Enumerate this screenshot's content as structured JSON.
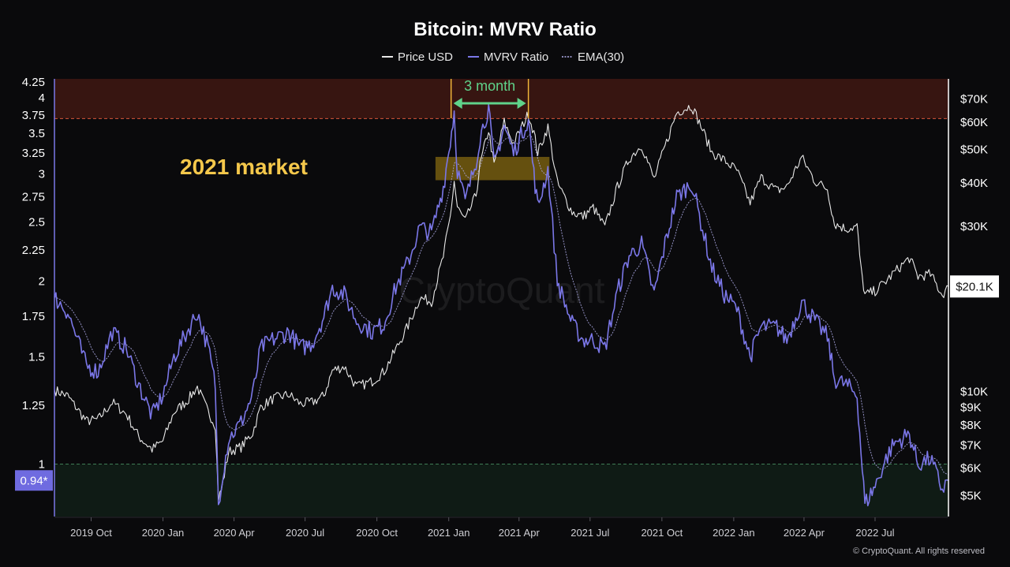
{
  "chart_data": {
    "type": "line",
    "title": "Bitcoin: MVRV Ratio",
    "legend": [
      {
        "name": "Price USD",
        "color": "#e8e8e8",
        "style": "solid"
      },
      {
        "name": "MVRV Ratio",
        "color": "#7b77e8",
        "style": "solid"
      },
      {
        "name": "EMA(30)",
        "color": "#b4b2f0",
        "style": "dotted"
      }
    ],
    "legend_placement": "top-center",
    "x_axis": {
      "type": "date",
      "range": [
        "2019-08-15",
        "2022-10-03"
      ],
      "ticks": [
        {
          "date": "2019-10-01",
          "label": "2019 Oct"
        },
        {
          "date": "2020-01-01",
          "label": "2020 Jan"
        },
        {
          "date": "2020-04-01",
          "label": "2020 Apr"
        },
        {
          "date": "2020-07-01",
          "label": "2020 Jul"
        },
        {
          "date": "2020-10-01",
          "label": "2020 Oct"
        },
        {
          "date": "2021-01-01",
          "label": "2021 Jan"
        },
        {
          "date": "2021-04-01",
          "label": "2021 Apr"
        },
        {
          "date": "2021-07-01",
          "label": "2021 Jul"
        },
        {
          "date": "2021-10-01",
          "label": "2021 Oct"
        },
        {
          "date": "2022-01-01",
          "label": "2022 Jan"
        },
        {
          "date": "2022-04-01",
          "label": "2022 Apr"
        },
        {
          "date": "2022-07-01",
          "label": "2022 Jul"
        }
      ]
    },
    "y_left": {
      "scale": "log",
      "range": [
        0.82,
        4.3
      ],
      "ticks": [
        {
          "value": 1,
          "label": "1"
        },
        {
          "value": 1.25,
          "label": "1.25"
        },
        {
          "value": 1.5,
          "label": "1.5"
        },
        {
          "value": 1.75,
          "label": "1.75"
        },
        {
          "value": 2,
          "label": "2"
        },
        {
          "value": 2.25,
          "label": "2.25"
        },
        {
          "value": 2.5,
          "label": "2.5"
        },
        {
          "value": 2.75,
          "label": "2.75"
        },
        {
          "value": 3,
          "label": "3"
        },
        {
          "value": 3.25,
          "label": "3.25"
        },
        {
          "value": 3.5,
          "label": "3.5"
        },
        {
          "value": 3.75,
          "label": "3.75"
        },
        {
          "value": 4,
          "label": "4"
        },
        {
          "value": 4.25,
          "label": "4.25"
        }
      ]
    },
    "y_right": {
      "scale": "log",
      "range": [
        4350,
        80000
      ],
      "ticks": [
        {
          "value": 5000,
          "label": "$5K"
        },
        {
          "value": 6000,
          "label": "$6K"
        },
        {
          "value": 7000,
          "label": "$7K"
        },
        {
          "value": 8000,
          "label": "$8K"
        },
        {
          "value": 9000,
          "label": "$9K"
        },
        {
          "value": 10000,
          "label": "$10K"
        },
        {
          "value": 30000,
          "label": "$30K"
        },
        {
          "value": 40000,
          "label": "$40K"
        },
        {
          "value": 50000,
          "label": "$50K"
        },
        {
          "value": 60000,
          "label": "$60K"
        },
        {
          "value": 70000,
          "label": "$70K"
        }
      ]
    },
    "current_markers": {
      "mvrv": {
        "value": 0.94,
        "label": "0.94*"
      },
      "price": {
        "value": 20100,
        "label": "$20.1K"
      }
    },
    "zones": [
      {
        "name": "overvalued",
        "from": 3.7,
        "to": 4.3,
        "color": "#3a1612"
      },
      {
        "name": "undervalued",
        "from": 0.82,
        "to": 1.0,
        "color": "#101c16"
      }
    ],
    "threshold_lines": [
      {
        "value": 3.7,
        "color": "#d9573b"
      },
      {
        "value": 1.0,
        "color": "#3f7d56"
      }
    ],
    "highlight_box": {
      "x_from": "2020-12-15",
      "x_to": "2021-05-10",
      "y_from": 2.93,
      "y_to": 3.2,
      "color": "#b08a12"
    },
    "annotations": [
      {
        "text": "2021 market",
        "color": "#f5c84b"
      },
      {
        "text": "3 month",
        "color": "#5fd38a",
        "x_from": "2021-01-04",
        "x_to": "2021-04-13"
      }
    ],
    "series": [
      {
        "name": "MVRV Ratio",
        "axis": "left",
        "points": [
          [
            "2019-08-15",
            1.88
          ],
          [
            "2019-09-01",
            1.78
          ],
          [
            "2019-09-25",
            1.45
          ],
          [
            "2019-10-10",
            1.42
          ],
          [
            "2019-10-28",
            1.65
          ],
          [
            "2019-11-15",
            1.55
          ],
          [
            "2019-12-01",
            1.35
          ],
          [
            "2019-12-18",
            1.2
          ],
          [
            "2020-01-01",
            1.3
          ],
          [
            "2020-01-15",
            1.5
          ],
          [
            "2020-02-01",
            1.65
          ],
          [
            "2020-02-14",
            1.78
          ],
          [
            "2020-02-28",
            1.55
          ],
          [
            "2020-03-08",
            1.35
          ],
          [
            "2020-03-12",
            0.86
          ],
          [
            "2020-03-16",
            0.94
          ],
          [
            "2020-03-25",
            1.1
          ],
          [
            "2020-04-10",
            1.17
          ],
          [
            "2020-04-25",
            1.3
          ],
          [
            "2020-05-05",
            1.55
          ],
          [
            "2020-05-20",
            1.6
          ],
          [
            "2020-06-10",
            1.65
          ],
          [
            "2020-06-25",
            1.55
          ],
          [
            "2020-07-10",
            1.58
          ],
          [
            "2020-07-25",
            1.75
          ],
          [
            "2020-08-05",
            1.95
          ],
          [
            "2020-08-20",
            1.9
          ],
          [
            "2020-09-05",
            1.72
          ],
          [
            "2020-09-25",
            1.65
          ],
          [
            "2020-10-10",
            1.7
          ],
          [
            "2020-10-25",
            1.95
          ],
          [
            "2020-11-10",
            2.15
          ],
          [
            "2020-11-25",
            2.45
          ],
          [
            "2020-12-10",
            2.4
          ],
          [
            "2020-12-25",
            2.85
          ],
          [
            "2021-01-03",
            3.4
          ],
          [
            "2021-01-08",
            3.8
          ],
          [
            "2021-01-12",
            3.05
          ],
          [
            "2021-01-22",
            2.7
          ],
          [
            "2021-02-05",
            3.15
          ],
          [
            "2021-02-10",
            3.45
          ],
          [
            "2021-02-21",
            3.85
          ],
          [
            "2021-02-28",
            3.1
          ],
          [
            "2021-03-13",
            3.6
          ],
          [
            "2021-03-25",
            3.25
          ],
          [
            "2021-04-13",
            3.7
          ],
          [
            "2021-04-20",
            3.0
          ],
          [
            "2021-04-25",
            2.65
          ],
          [
            "2021-05-08",
            3.05
          ],
          [
            "2021-05-20",
            2.0
          ],
          [
            "2021-06-08",
            1.7
          ],
          [
            "2021-06-22",
            1.6
          ],
          [
            "2021-07-05",
            1.6
          ],
          [
            "2021-07-20",
            1.55
          ],
          [
            "2021-08-05",
            1.92
          ],
          [
            "2021-08-20",
            2.2
          ],
          [
            "2021-09-05",
            2.3
          ],
          [
            "2021-09-21",
            1.9
          ],
          [
            "2021-10-05",
            2.3
          ],
          [
            "2021-10-20",
            2.75
          ],
          [
            "2021-11-08",
            2.9
          ],
          [
            "2021-11-20",
            2.5
          ],
          [
            "2021-12-04",
            2.1
          ],
          [
            "2021-12-20",
            1.9
          ],
          [
            "2022-01-05",
            1.8
          ],
          [
            "2022-01-22",
            1.5
          ],
          [
            "2022-02-05",
            1.68
          ],
          [
            "2022-02-25",
            1.68
          ],
          [
            "2022-03-10",
            1.6
          ],
          [
            "2022-03-29",
            1.85
          ],
          [
            "2022-04-15",
            1.72
          ],
          [
            "2022-05-01",
            1.62
          ],
          [
            "2022-05-10",
            1.38
          ],
          [
            "2022-05-25",
            1.35
          ],
          [
            "2022-06-08",
            1.3
          ],
          [
            "2022-06-13",
            1.05
          ],
          [
            "2022-06-18",
            0.86
          ],
          [
            "2022-07-01",
            0.92
          ],
          [
            "2022-07-15",
            1.02
          ],
          [
            "2022-07-25",
            1.08
          ],
          [
            "2022-08-14",
            1.12
          ],
          [
            "2022-08-25",
            1.0
          ],
          [
            "2022-09-10",
            1.02
          ],
          [
            "2022-09-25",
            0.91
          ],
          [
            "2022-10-03",
            0.94
          ]
        ]
      },
      {
        "name": "Price USD",
        "axis": "right",
        "points": [
          [
            "2019-08-15",
            10100
          ],
          [
            "2019-09-01",
            9700
          ],
          [
            "2019-09-25",
            8200
          ],
          [
            "2019-10-10",
            8300
          ],
          [
            "2019-10-28",
            9300
          ],
          [
            "2019-11-15",
            8600
          ],
          [
            "2019-12-01",
            7400
          ],
          [
            "2019-12-18",
            6800
          ],
          [
            "2020-01-01",
            7200
          ],
          [
            "2020-01-15",
            8700
          ],
          [
            "2020-02-01",
            9400
          ],
          [
            "2020-02-14",
            10300
          ],
          [
            "2020-02-28",
            8700
          ],
          [
            "2020-03-08",
            8000
          ],
          [
            "2020-03-12",
            4900
          ],
          [
            "2020-03-16",
            5200
          ],
          [
            "2020-03-25",
            6700
          ],
          [
            "2020-04-10",
            6900
          ],
          [
            "2020-04-25",
            7600
          ],
          [
            "2020-05-05",
            9000
          ],
          [
            "2020-05-20",
            9500
          ],
          [
            "2020-06-10",
            9800
          ],
          [
            "2020-06-25",
            9200
          ],
          [
            "2020-07-10",
            9300
          ],
          [
            "2020-07-25",
            9700
          ],
          [
            "2020-08-05",
            11500
          ],
          [
            "2020-08-20",
            11800
          ],
          [
            "2020-09-05",
            10300
          ],
          [
            "2020-09-25",
            10700
          ],
          [
            "2020-10-10",
            11400
          ],
          [
            "2020-10-25",
            13200
          ],
          [
            "2020-11-10",
            15500
          ],
          [
            "2020-11-25",
            18600
          ],
          [
            "2020-12-10",
            18200
          ],
          [
            "2020-12-25",
            24500
          ],
          [
            "2021-01-03",
            32000
          ],
          [
            "2021-01-08",
            40500
          ],
          [
            "2021-01-12",
            34000
          ],
          [
            "2021-01-22",
            31000
          ],
          [
            "2021-02-05",
            37000
          ],
          [
            "2021-02-10",
            45000
          ],
          [
            "2021-02-21",
            57000
          ],
          [
            "2021-02-28",
            45000
          ],
          [
            "2021-03-13",
            60000
          ],
          [
            "2021-03-25",
            52000
          ],
          [
            "2021-04-13",
            63500
          ],
          [
            "2021-04-20",
            56000
          ],
          [
            "2021-04-25",
            49000
          ],
          [
            "2021-05-08",
            58000
          ],
          [
            "2021-05-20",
            40000
          ],
          [
            "2021-06-08",
            33000
          ],
          [
            "2021-06-22",
            32000
          ],
          [
            "2021-07-05",
            34000
          ],
          [
            "2021-07-20",
            29800
          ],
          [
            "2021-08-05",
            39000
          ],
          [
            "2021-08-20",
            47000
          ],
          [
            "2021-09-05",
            51500
          ],
          [
            "2021-09-21",
            41000
          ],
          [
            "2021-10-05",
            51000
          ],
          [
            "2021-10-20",
            64000
          ],
          [
            "2021-11-08",
            67000
          ],
          [
            "2021-11-20",
            58500
          ],
          [
            "2021-12-04",
            49000
          ],
          [
            "2021-12-20",
            46500
          ],
          [
            "2022-01-05",
            43500
          ],
          [
            "2022-01-22",
            35000
          ],
          [
            "2022-02-05",
            41500
          ],
          [
            "2022-02-25",
            38000
          ],
          [
            "2022-03-10",
            39000
          ],
          [
            "2022-03-29",
            47500
          ],
          [
            "2022-04-15",
            40500
          ],
          [
            "2022-05-01",
            38500
          ],
          [
            "2022-05-10",
            30500
          ],
          [
            "2022-05-25",
            29500
          ],
          [
            "2022-06-08",
            30000
          ],
          [
            "2022-06-13",
            22500
          ],
          [
            "2022-06-18",
            19000
          ],
          [
            "2022-07-01",
            19500
          ],
          [
            "2022-07-15",
            20800
          ],
          [
            "2022-07-25",
            22000
          ],
          [
            "2022-08-14",
            24300
          ],
          [
            "2022-08-25",
            21500
          ],
          [
            "2022-09-10",
            21800
          ],
          [
            "2022-09-25",
            19000
          ],
          [
            "2022-10-03",
            20100
          ]
        ]
      }
    ]
  },
  "watermark": "CryptoQuant",
  "copyright": "© CryptoQuant. All rights reserved"
}
